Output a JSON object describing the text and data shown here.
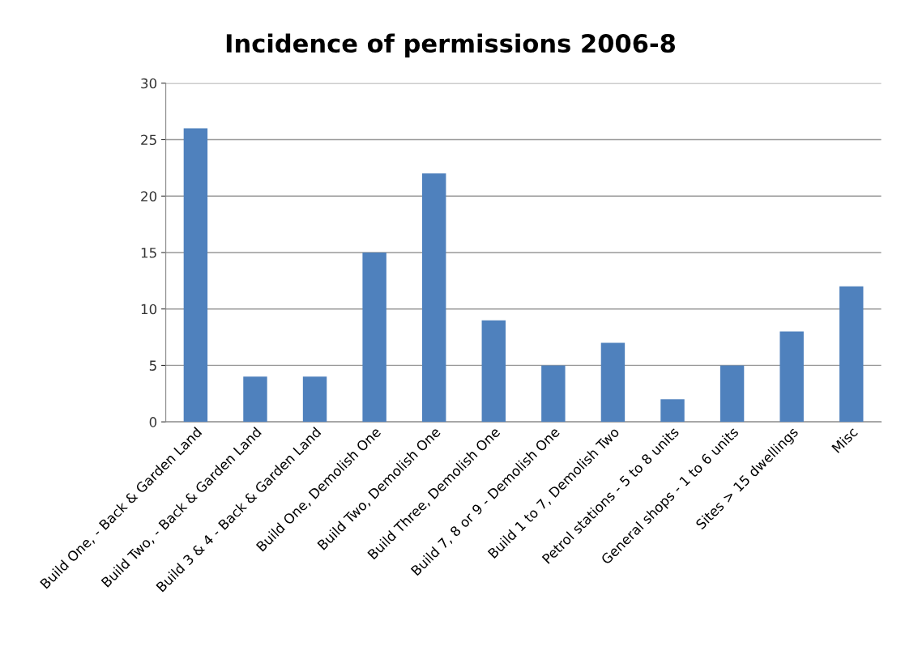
{
  "chart_data": {
    "type": "bar",
    "title": "Incidence of permissions 2006-8",
    "categories": [
      "Build One, - Back & Garden Land",
      "Build Two, - Back & Garden Land",
      "Build 3 & 4 - Back & Garden Land",
      "Build One, Demolish One",
      "Build Two, Demolish One",
      "Build Three, Demolish One",
      "Build 7, 8 or 9 - Demolish One",
      "Build 1 to 7, Demolish Two",
      "Petrol stations - 5 to 8 units",
      "General shops - 1 to 6 units",
      "Sites > 15 dwellings",
      "Misc"
    ],
    "values": [
      26,
      4,
      4,
      15,
      22,
      9,
      5,
      7,
      2,
      5,
      8,
      12
    ],
    "color": "#4f81bd",
    "ylim": [
      0,
      30
    ],
    "yticks": [
      0,
      5,
      10,
      15,
      20,
      25,
      30
    ],
    "grid": "y",
    "legend": false
  }
}
